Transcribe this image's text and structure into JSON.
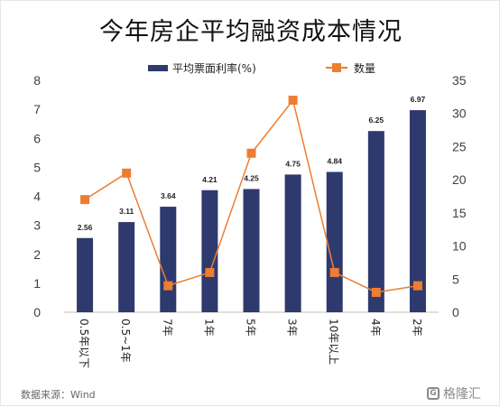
{
  "chart_data": {
    "type": "bar-line-combo",
    "title": "今年房企平均融资成本情况",
    "categories": [
      "0.5年以下",
      "0.5~1年",
      "7年",
      "1年",
      "5年",
      "3年",
      "10年以上",
      "4年",
      "2年"
    ],
    "series": [
      {
        "name": "平均票面利率(%)",
        "type": "bar",
        "axis": "left",
        "color": "#2e3a6e",
        "values": [
          2.56,
          3.11,
          3.64,
          4.21,
          4.25,
          4.75,
          4.84,
          6.25,
          6.97
        ],
        "labels": [
          "2.56",
          "3.11",
          "3.64",
          "4.21",
          "4.25",
          "4.75",
          "4.84",
          "6.25",
          "6.97"
        ]
      },
      {
        "name": "数量",
        "type": "line",
        "axis": "right",
        "color": "#ed7d31",
        "values": [
          17,
          21,
          4,
          6,
          24,
          32,
          6,
          3,
          4
        ]
      }
    ],
    "y_left": {
      "min": 0,
      "max": 8,
      "ticks": [
        "0",
        "1",
        "2",
        "3",
        "4",
        "5",
        "6",
        "7",
        "8"
      ]
    },
    "y_right": {
      "min": 0,
      "max": 35,
      "ticks": [
        "0",
        "5",
        "10",
        "15",
        "20",
        "25",
        "30",
        "35"
      ]
    },
    "legend_position": "top",
    "grid": false
  },
  "source_note": "数据来源：Wind",
  "watermark": {
    "text": "格隆汇",
    "logo": "G"
  }
}
